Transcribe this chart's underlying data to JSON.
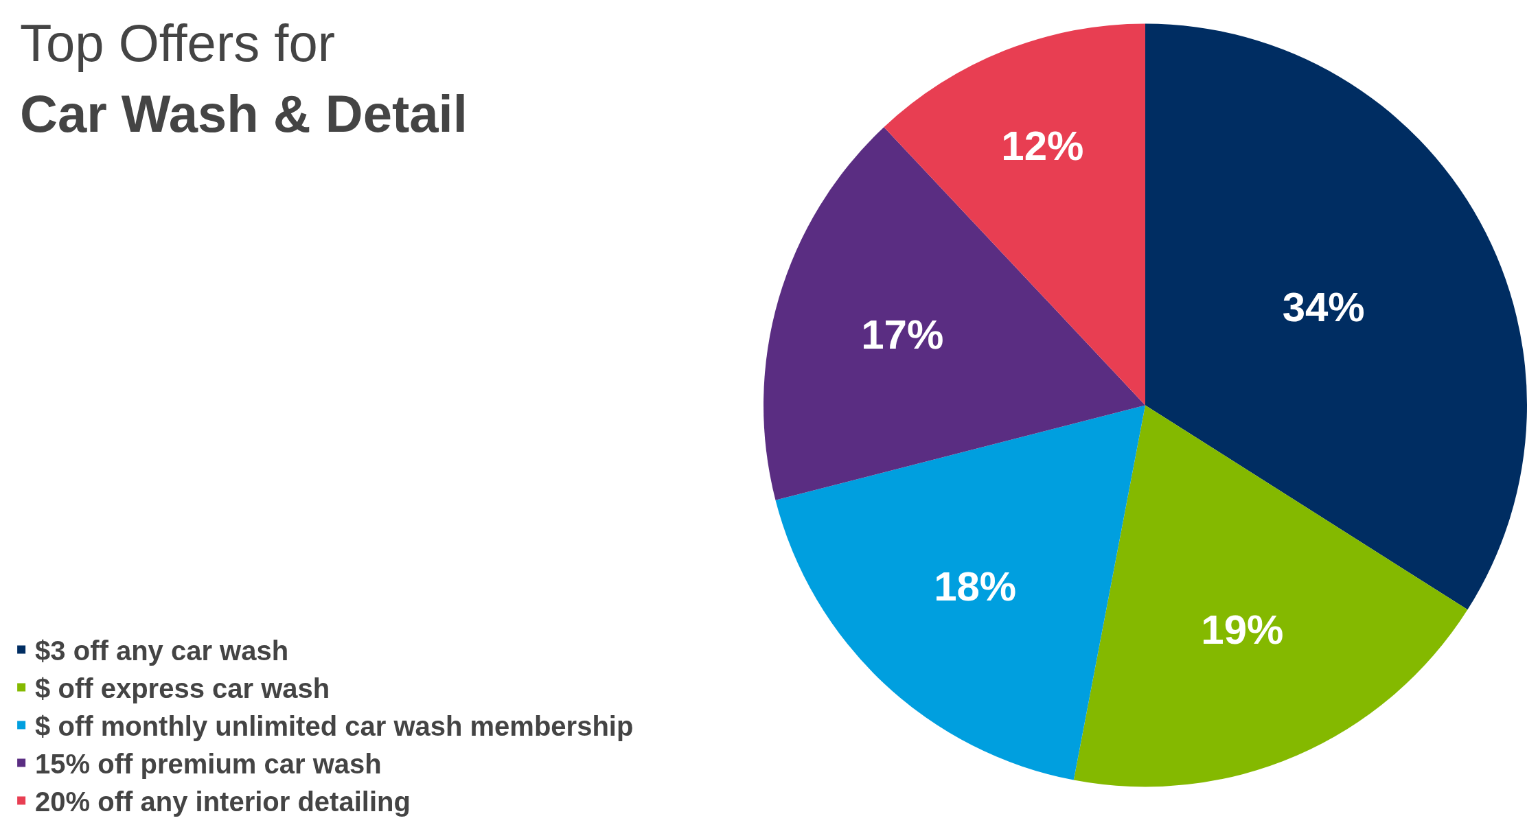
{
  "chart_data": {
    "type": "pie",
    "title": "Top Offers for",
    "subtitle": "Car Wash & Detail",
    "categories": [
      "$3 off any car wash",
      "$ off express car wash",
      "$ off monthly unlimited car wash membership",
      "15% off premium car wash",
      "20% off any interior detailing"
    ],
    "values": [
      34,
      19,
      18,
      17,
      12
    ],
    "colors": [
      "#002d62",
      "#84b900",
      "#009fdf",
      "#5a2d82",
      "#e83e52"
    ],
    "value_labels": [
      "34%",
      "19%",
      "18%",
      "17%",
      "12%"
    ],
    "legend": "bottom left"
  }
}
